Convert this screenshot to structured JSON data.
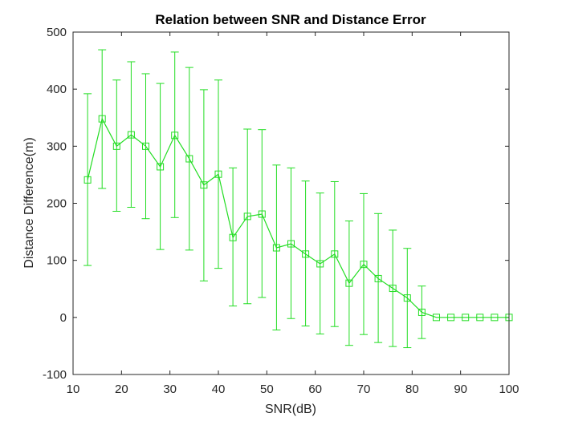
{
  "chart_data": {
    "type": "line",
    "title": "Relation between SNR and Distance Error",
    "xlabel": "SNR(dB)",
    "ylabel": "Distance Difference(m)",
    "xlim": [
      10,
      100
    ],
    "ylim": [
      -100,
      500
    ],
    "xticks": [
      "10",
      "20",
      "30",
      "40",
      "50",
      "60",
      "70",
      "80",
      "90",
      "100"
    ],
    "yticks": [
      "-100",
      "0",
      "100",
      "200",
      "300",
      "400",
      "500"
    ],
    "grid": false,
    "legend": "none",
    "marker": "square",
    "color": "#22dd22",
    "series": [
      {
        "x": [
          13,
          16,
          19,
          22,
          25,
          28,
          31,
          34,
          37,
          40,
          43,
          46,
          49,
          52,
          55,
          58,
          61,
          64,
          67,
          70,
          73,
          76,
          79,
          82,
          85,
          88,
          91,
          94,
          97,
          100
        ],
        "y": [
          241,
          348,
          300,
          320,
          300,
          264,
          319,
          278,
          232,
          251,
          140,
          177,
          181,
          122,
          129,
          111,
          94,
          111,
          60,
          93,
          68,
          51,
          34,
          9,
          0,
          0,
          0,
          0,
          0,
          0
        ],
        "y_lower": [
          91,
          226,
          186,
          193,
          173,
          119,
          175,
          118,
          64,
          86,
          20,
          24,
          35,
          -22,
          -2,
          -15,
          -29,
          -16,
          -49,
          -30,
          -44,
          -51,
          -53,
          -37,
          0,
          0,
          0,
          0,
          0,
          0
        ],
        "y_upper": [
          392,
          469,
          416,
          448,
          427,
          410,
          465,
          438,
          399,
          416,
          262,
          330,
          329,
          267,
          262,
          239,
          218,
          238,
          169,
          217,
          182,
          153,
          121,
          55,
          0,
          0,
          0,
          0,
          0,
          0
        ]
      }
    ]
  }
}
